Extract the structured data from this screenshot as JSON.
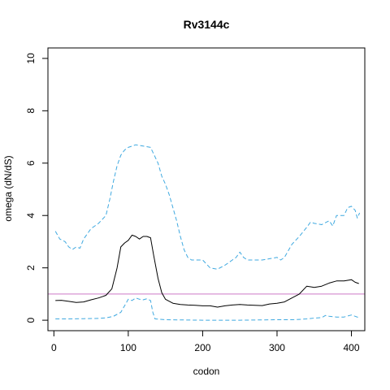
{
  "chart_data": {
    "type": "line",
    "title": "Rv3144c",
    "xlabel": "codon",
    "ylabel": "omega (dN/dS)",
    "xlim": [
      -8,
      418
    ],
    "ylim": [
      -0.4,
      10.4
    ],
    "xticks": [
      0,
      100,
      200,
      300,
      400
    ],
    "yticks": [
      0,
      2,
      4,
      6,
      8,
      10
    ],
    "grid": false,
    "reference_line": {
      "y": 1,
      "color": "#cc79c7"
    },
    "series": [
      {
        "role": "estimate",
        "color": "#000000",
        "dash": "solid",
        "points": [
          [
            2,
            0.75
          ],
          [
            10,
            0.76
          ],
          [
            20,
            0.72
          ],
          [
            30,
            0.68
          ],
          [
            40,
            0.7
          ],
          [
            50,
            0.78
          ],
          [
            60,
            0.85
          ],
          [
            70,
            0.95
          ],
          [
            78,
            1.2
          ],
          [
            85,
            2.0
          ],
          [
            90,
            2.8
          ],
          [
            95,
            2.95
          ],
          [
            100,
            3.05
          ],
          [
            105,
            3.25
          ],
          [
            110,
            3.2
          ],
          [
            115,
            3.1
          ],
          [
            120,
            3.2
          ],
          [
            125,
            3.2
          ],
          [
            130,
            3.15
          ],
          [
            134,
            2.5
          ],
          [
            140,
            1.6
          ],
          [
            145,
            1.05
          ],
          [
            150,
            0.8
          ],
          [
            160,
            0.65
          ],
          [
            170,
            0.6
          ],
          [
            180,
            0.58
          ],
          [
            190,
            0.57
          ],
          [
            200,
            0.55
          ],
          [
            210,
            0.55
          ],
          [
            220,
            0.5
          ],
          [
            230,
            0.55
          ],
          [
            240,
            0.58
          ],
          [
            250,
            0.6
          ],
          [
            260,
            0.58
          ],
          [
            270,
            0.57
          ],
          [
            280,
            0.56
          ],
          [
            290,
            0.62
          ],
          [
            300,
            0.65
          ],
          [
            310,
            0.7
          ],
          [
            320,
            0.85
          ],
          [
            330,
            1.0
          ],
          [
            340,
            1.3
          ],
          [
            350,
            1.25
          ],
          [
            360,
            1.3
          ],
          [
            370,
            1.42
          ],
          [
            380,
            1.5
          ],
          [
            390,
            1.5
          ],
          [
            400,
            1.55
          ],
          [
            405,
            1.45
          ],
          [
            410,
            1.4
          ]
        ]
      },
      {
        "role": "upper",
        "color": "#3fa9e0",
        "dash": "dashed",
        "points": [
          [
            2,
            3.4
          ],
          [
            8,
            3.1
          ],
          [
            15,
            3.0
          ],
          [
            20,
            2.8
          ],
          [
            25,
            2.7
          ],
          [
            30,
            2.8
          ],
          [
            35,
            2.75
          ],
          [
            40,
            3.1
          ],
          [
            50,
            3.5
          ],
          [
            55,
            3.6
          ],
          [
            60,
            3.7
          ],
          [
            65,
            3.85
          ],
          [
            70,
            4.0
          ],
          [
            75,
            4.6
          ],
          [
            80,
            5.3
          ],
          [
            85,
            5.9
          ],
          [
            90,
            6.3
          ],
          [
            95,
            6.5
          ],
          [
            100,
            6.6
          ],
          [
            105,
            6.65
          ],
          [
            110,
            6.7
          ],
          [
            120,
            6.65
          ],
          [
            130,
            6.6
          ],
          [
            135,
            6.3
          ],
          [
            140,
            6.0
          ],
          [
            145,
            5.5
          ],
          [
            150,
            5.2
          ],
          [
            155,
            4.8
          ],
          [
            160,
            4.3
          ],
          [
            165,
            3.8
          ],
          [
            170,
            3.2
          ],
          [
            175,
            2.7
          ],
          [
            180,
            2.4
          ],
          [
            185,
            2.3
          ],
          [
            190,
            2.3
          ],
          [
            200,
            2.3
          ],
          [
            210,
            2.0
          ],
          [
            220,
            1.95
          ],
          [
            230,
            2.1
          ],
          [
            240,
            2.3
          ],
          [
            245,
            2.4
          ],
          [
            250,
            2.6
          ],
          [
            255,
            2.4
          ],
          [
            260,
            2.3
          ],
          [
            270,
            2.3
          ],
          [
            280,
            2.3
          ],
          [
            290,
            2.35
          ],
          [
            300,
            2.4
          ],
          [
            305,
            2.3
          ],
          [
            310,
            2.4
          ],
          [
            320,
            2.9
          ],
          [
            330,
            3.2
          ],
          [
            340,
            3.55
          ],
          [
            345,
            3.75
          ],
          [
            350,
            3.7
          ],
          [
            360,
            3.65
          ],
          [
            370,
            3.8
          ],
          [
            375,
            3.6
          ],
          [
            380,
            4.0
          ],
          [
            390,
            4.0
          ],
          [
            395,
            4.3
          ],
          [
            400,
            4.35
          ],
          [
            405,
            4.2
          ],
          [
            408,
            3.9
          ],
          [
            411,
            4.1
          ]
        ]
      },
      {
        "role": "lower",
        "color": "#3fa9e0",
        "dash": "dashed",
        "points": [
          [
            2,
            0.05
          ],
          [
            20,
            0.05
          ],
          [
            40,
            0.06
          ],
          [
            60,
            0.07
          ],
          [
            70,
            0.09
          ],
          [
            80,
            0.15
          ],
          [
            90,
            0.3
          ],
          [
            95,
            0.55
          ],
          [
            100,
            0.8
          ],
          [
            105,
            0.75
          ],
          [
            110,
            0.85
          ],
          [
            115,
            0.8
          ],
          [
            120,
            0.78
          ],
          [
            125,
            0.82
          ],
          [
            130,
            0.75
          ],
          [
            133,
            0.3
          ],
          [
            136,
            0.05
          ],
          [
            150,
            0.02
          ],
          [
            200,
            0.0
          ],
          [
            250,
            0.0
          ],
          [
            300,
            0.02
          ],
          [
            320,
            0.02
          ],
          [
            330,
            0.03
          ],
          [
            340,
            0.05
          ],
          [
            350,
            0.08
          ],
          [
            360,
            0.1
          ],
          [
            365,
            0.18
          ],
          [
            370,
            0.15
          ],
          [
            380,
            0.12
          ],
          [
            390,
            0.12
          ],
          [
            400,
            0.2
          ],
          [
            405,
            0.15
          ],
          [
            410,
            0.1
          ]
        ]
      }
    ]
  }
}
